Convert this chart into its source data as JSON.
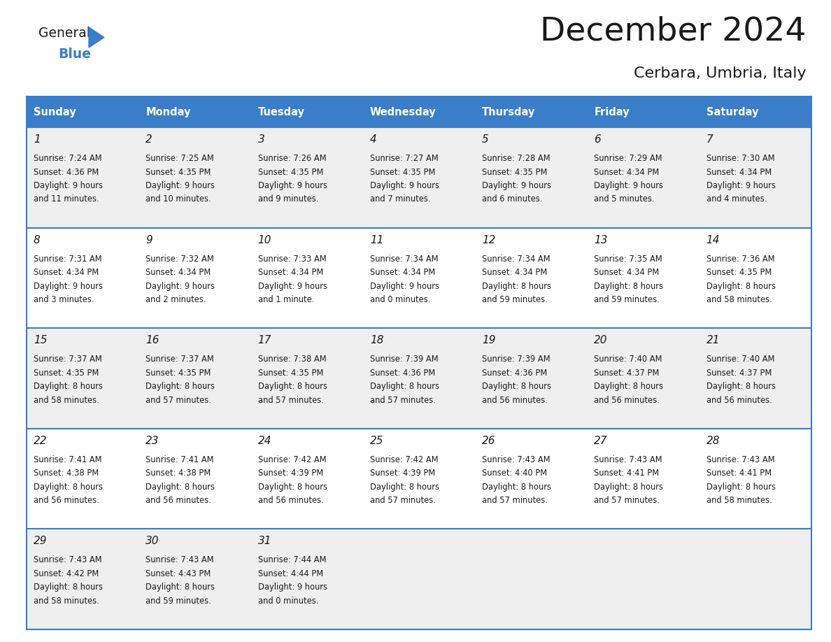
{
  "title": "December 2024",
  "subtitle": "Cerbara, Umbria, Italy",
  "header_bg": "#3A7DC9",
  "header_text": "#FFFFFF",
  "row_bg_odd": "#EFEFEF",
  "row_bg_even": "#FFFFFF",
  "border_color": "#3A7DC9",
  "text_color": "#1a1a1a",
  "day_names": [
    "Sunday",
    "Monday",
    "Tuesday",
    "Wednesday",
    "Thursday",
    "Friday",
    "Saturday"
  ],
  "weeks": [
    [
      {
        "day": 1,
        "sunrise": "7:24 AM",
        "sunset": "4:36 PM",
        "daylight": "9 hours\nand 11 minutes."
      },
      {
        "day": 2,
        "sunrise": "7:25 AM",
        "sunset": "4:35 PM",
        "daylight": "9 hours\nand 10 minutes."
      },
      {
        "day": 3,
        "sunrise": "7:26 AM",
        "sunset": "4:35 PM",
        "daylight": "9 hours\nand 9 minutes."
      },
      {
        "day": 4,
        "sunrise": "7:27 AM",
        "sunset": "4:35 PM",
        "daylight": "9 hours\nand 7 minutes."
      },
      {
        "day": 5,
        "sunrise": "7:28 AM",
        "sunset": "4:35 PM",
        "daylight": "9 hours\nand 6 minutes."
      },
      {
        "day": 6,
        "sunrise": "7:29 AM",
        "sunset": "4:34 PM",
        "daylight": "9 hours\nand 5 minutes."
      },
      {
        "day": 7,
        "sunrise": "7:30 AM",
        "sunset": "4:34 PM",
        "daylight": "9 hours\nand 4 minutes."
      }
    ],
    [
      {
        "day": 8,
        "sunrise": "7:31 AM",
        "sunset": "4:34 PM",
        "daylight": "9 hours\nand 3 minutes."
      },
      {
        "day": 9,
        "sunrise": "7:32 AM",
        "sunset": "4:34 PM",
        "daylight": "9 hours\nand 2 minutes."
      },
      {
        "day": 10,
        "sunrise": "7:33 AM",
        "sunset": "4:34 PM",
        "daylight": "9 hours\nand 1 minute."
      },
      {
        "day": 11,
        "sunrise": "7:34 AM",
        "sunset": "4:34 PM",
        "daylight": "9 hours\nand 0 minutes."
      },
      {
        "day": 12,
        "sunrise": "7:34 AM",
        "sunset": "4:34 PM",
        "daylight": "8 hours\nand 59 minutes."
      },
      {
        "day": 13,
        "sunrise": "7:35 AM",
        "sunset": "4:34 PM",
        "daylight": "8 hours\nand 59 minutes."
      },
      {
        "day": 14,
        "sunrise": "7:36 AM",
        "sunset": "4:35 PM",
        "daylight": "8 hours\nand 58 minutes."
      }
    ],
    [
      {
        "day": 15,
        "sunrise": "7:37 AM",
        "sunset": "4:35 PM",
        "daylight": "8 hours\nand 58 minutes."
      },
      {
        "day": 16,
        "sunrise": "7:37 AM",
        "sunset": "4:35 PM",
        "daylight": "8 hours\nand 57 minutes."
      },
      {
        "day": 17,
        "sunrise": "7:38 AM",
        "sunset": "4:35 PM",
        "daylight": "8 hours\nand 57 minutes."
      },
      {
        "day": 18,
        "sunrise": "7:39 AM",
        "sunset": "4:36 PM",
        "daylight": "8 hours\nand 57 minutes."
      },
      {
        "day": 19,
        "sunrise": "7:39 AM",
        "sunset": "4:36 PM",
        "daylight": "8 hours\nand 56 minutes."
      },
      {
        "day": 20,
        "sunrise": "7:40 AM",
        "sunset": "4:37 PM",
        "daylight": "8 hours\nand 56 minutes."
      },
      {
        "day": 21,
        "sunrise": "7:40 AM",
        "sunset": "4:37 PM",
        "daylight": "8 hours\nand 56 minutes."
      }
    ],
    [
      {
        "day": 22,
        "sunrise": "7:41 AM",
        "sunset": "4:38 PM",
        "daylight": "8 hours\nand 56 minutes."
      },
      {
        "day": 23,
        "sunrise": "7:41 AM",
        "sunset": "4:38 PM",
        "daylight": "8 hours\nand 56 minutes."
      },
      {
        "day": 24,
        "sunrise": "7:42 AM",
        "sunset": "4:39 PM",
        "daylight": "8 hours\nand 56 minutes."
      },
      {
        "day": 25,
        "sunrise": "7:42 AM",
        "sunset": "4:39 PM",
        "daylight": "8 hours\nand 57 minutes."
      },
      {
        "day": 26,
        "sunrise": "7:43 AM",
        "sunset": "4:40 PM",
        "daylight": "8 hours\nand 57 minutes."
      },
      {
        "day": 27,
        "sunrise": "7:43 AM",
        "sunset": "4:41 PM",
        "daylight": "8 hours\nand 57 minutes."
      },
      {
        "day": 28,
        "sunrise": "7:43 AM",
        "sunset": "4:41 PM",
        "daylight": "8 hours\nand 58 minutes."
      }
    ],
    [
      {
        "day": 29,
        "sunrise": "7:43 AM",
        "sunset": "4:42 PM",
        "daylight": "8 hours\nand 58 minutes."
      },
      {
        "day": 30,
        "sunrise": "7:43 AM",
        "sunset": "4:43 PM",
        "daylight": "8 hours\nand 59 minutes."
      },
      {
        "day": 31,
        "sunrise": "7:44 AM",
        "sunset": "4:44 PM",
        "daylight": "9 hours\nand 0 minutes."
      },
      null,
      null,
      null,
      null
    ]
  ]
}
